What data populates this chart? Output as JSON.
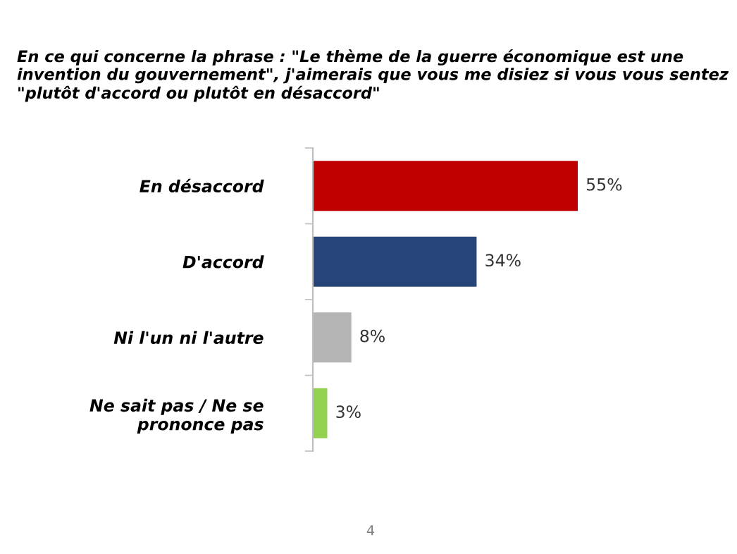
{
  "chart_data": {
    "type": "bar",
    "orientation": "horizontal",
    "title": "En ce qui concerne la phrase : \"Le thème de la guerre économique est une invention du gouvernement\", j'aimerais que vous me disiez si vous vous sentez \"plutôt d'accord ou plutôt en désaccord\"",
    "categories": [
      "En désaccord",
      "D'accord",
      "Ni l'un ni l'autre",
      "Ne sait pas / Ne se\nprononce pas"
    ],
    "values": [
      55,
      34,
      8,
      3
    ],
    "colors": [
      "#c00000",
      "#264478",
      "#b4b4b4",
      "#92d050"
    ],
    "value_labels": [
      "55%",
      "34%",
      "8%",
      "3%"
    ],
    "grid": false,
    "legend": false,
    "annotations": [
      "4"
    ]
  }
}
